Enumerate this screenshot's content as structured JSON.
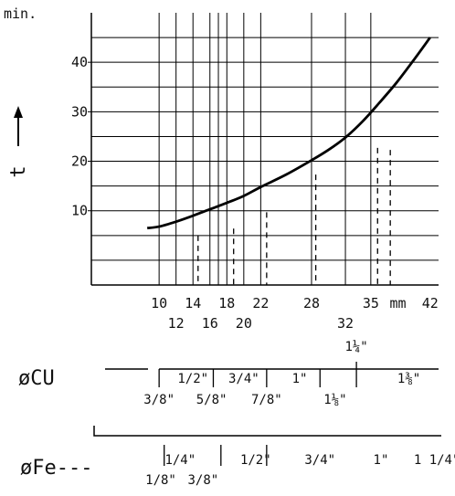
{
  "chart_data": {
    "type": "line",
    "y_unit_label": "min.",
    "y_axis_label": "t",
    "y_ticks": [
      "10",
      "20",
      "30",
      "40"
    ],
    "y_tick_values": [
      10,
      20,
      30,
      40
    ],
    "ylim": [
      -5,
      50
    ],
    "x_ticks_row1": [
      "10",
      "14",
      "18",
      "22",
      "28",
      "35",
      "42"
    ],
    "x_ticks_row1_values": [
      10,
      14,
      18,
      22,
      28,
      35,
      42
    ],
    "x_ticks_row2": [
      "12",
      "16",
      "20",
      "32"
    ],
    "x_ticks_row2_values": [
      12,
      16,
      20,
      32
    ],
    "x_unit_label": "mm",
    "x_gridlines": [
      10,
      12,
      14,
      16,
      17,
      18,
      20,
      22,
      28,
      32,
      35
    ],
    "curve": {
      "x": [
        8.6,
        10,
        12,
        14,
        16,
        18,
        20,
        22,
        25,
        28,
        30,
        32,
        34,
        36,
        38,
        40,
        42
      ],
      "y": [
        6.5,
        6.8,
        7.8,
        9.0,
        10.3,
        11.6,
        13.0,
        14.8,
        17.3,
        20.2,
        22.3,
        24.8,
        28.0,
        31.8,
        35.8,
        40.3,
        45.0
      ]
    },
    "dashed_refs": [
      {
        "x": 14.6,
        "top": 5
      },
      {
        "x": 18.8,
        "top": 6.4
      },
      {
        "x": 22.7,
        "top": 9.7
      },
      {
        "x": 28.5,
        "top": 17.3
      },
      {
        "x": 35.8,
        "top": 22.7
      },
      {
        "x": 37.3,
        "top": 22.3
      }
    ],
    "grid": true
  },
  "scales": {
    "cu": {
      "label": "øCU",
      "top": [
        {
          "text": "1/2\"",
          "x": 14
        },
        {
          "text": "3/4\"",
          "x": 20
        },
        {
          "text": "1\"",
          "x": 26.6
        },
        {
          "text": "1⅜\"",
          "x": 39.5
        }
      ],
      "bottom": [
        {
          "text": "3/8\"",
          "x": 10
        },
        {
          "text": "5/8\"",
          "x": 16.2
        },
        {
          "text": "7/8\"",
          "x": 22.7
        },
        {
          "text": "1⅛\"",
          "x": 30.8
        }
      ],
      "above": {
        "text": "1¼\"",
        "x": 33.3
      },
      "dividers": [
        10,
        16.4,
        22.7,
        29,
        33.3
      ]
    },
    "fe": {
      "label": "øFe---",
      "top": [
        {
          "text": "1/4\"",
          "x": 12.5
        },
        {
          "text": "1/2\"",
          "x": 21.4
        },
        {
          "text": "3/4\"",
          "x": 29
        },
        {
          "text": "1\"",
          "x": 36.2
        },
        {
          "text": "1 1/4\"",
          "x": 42.8
        }
      ],
      "bottom": [
        {
          "text": "1/8\"",
          "x": 10.2
        },
        {
          "text": "3/8\"",
          "x": 15.2
        }
      ],
      "dividers": [
        10.6,
        17.3,
        22.7
      ]
    }
  }
}
